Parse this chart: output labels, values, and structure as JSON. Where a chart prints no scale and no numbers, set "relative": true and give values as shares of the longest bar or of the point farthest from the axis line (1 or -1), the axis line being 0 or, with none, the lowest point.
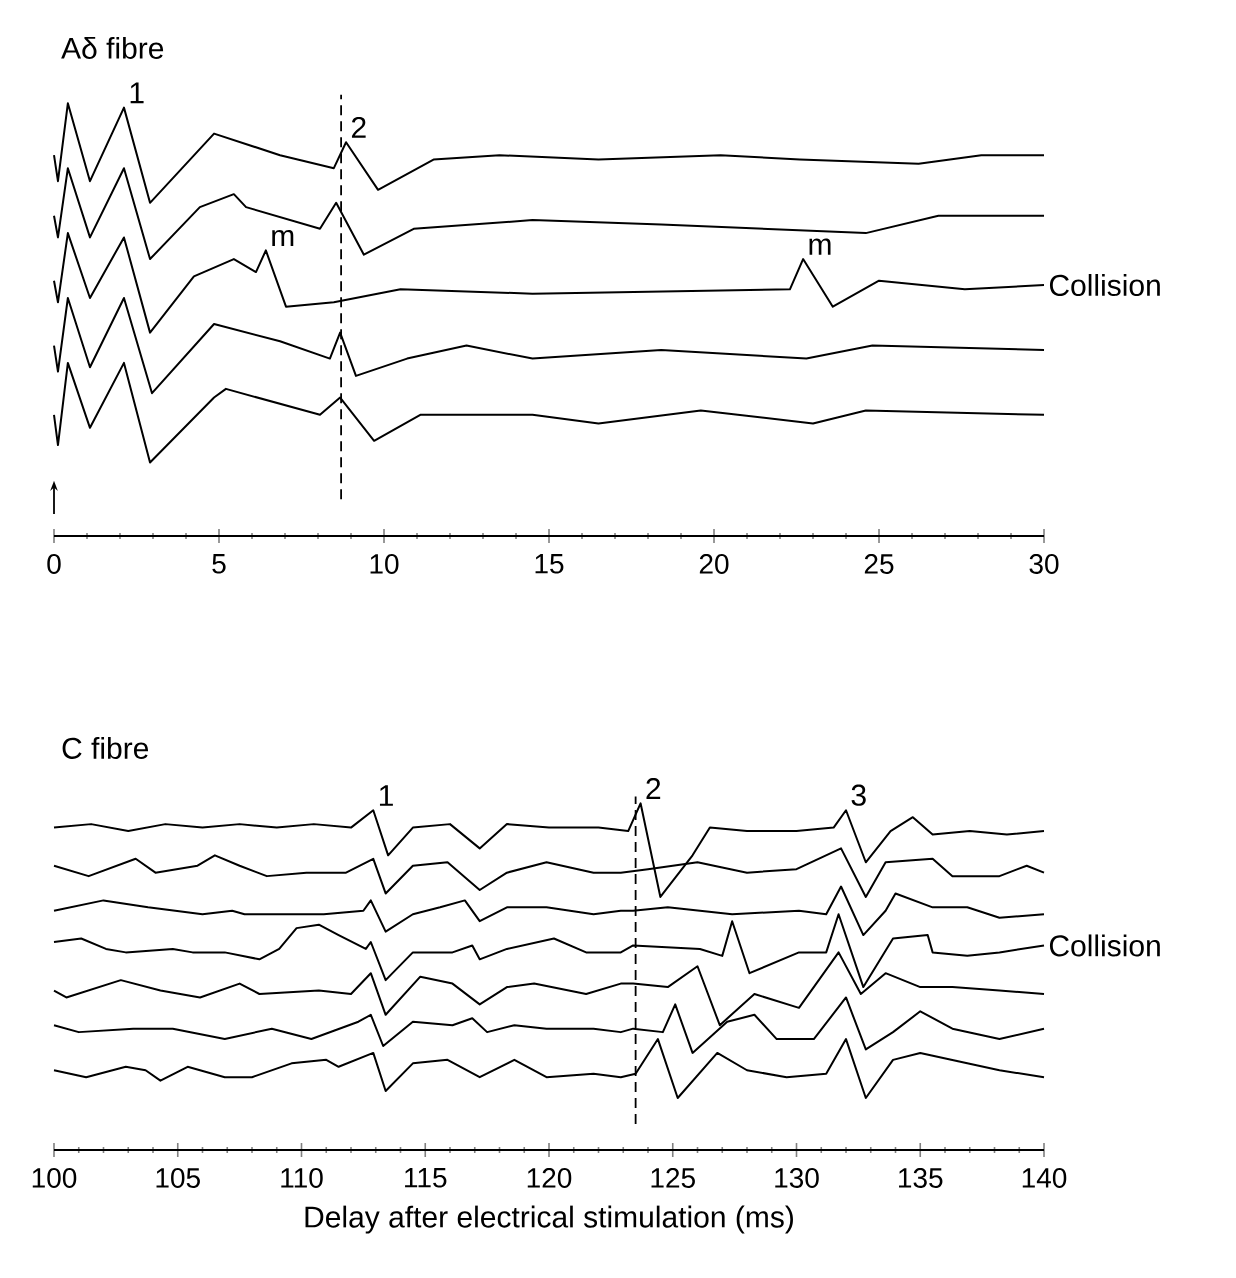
{
  "chart_data": [
    {
      "type": "line",
      "title": "Aδ fibre",
      "relative": true,
      "xlim": [
        0,
        30
      ],
      "xticks": [
        0,
        5,
        10,
        15,
        20,
        25,
        30
      ],
      "series": [
        {
          "color": "#000000",
          "x": [
            0,
            0.12,
            0.42,
            1.09,
            2.12,
            2.91,
            4.85,
            6.85,
            8.48,
            8.85,
            9.82,
            11.5,
            13.5,
            16.5,
            20.2,
            22.6,
            26.2,
            28.1,
            30
          ],
          "values": [
            0.88,
            0.82,
            1.0,
            0.82,
            0.99,
            0.77,
            0.93,
            0.88,
            0.85,
            0.91,
            0.8,
            0.87,
            0.88,
            0.87,
            0.88,
            0.87,
            0.86,
            0.88,
            0.88
          ]
        },
        {
          "color": "#000000",
          "x": [
            0,
            0.12,
            0.42,
            1.09,
            2.12,
            2.91,
            4.42,
            5.45,
            5.82,
            8.06,
            8.55,
            9.39,
            10.9,
            14.5,
            18.4,
            24.6,
            26.8,
            30
          ],
          "values": [
            0.74,
            0.69,
            0.85,
            0.69,
            0.85,
            0.64,
            0.76,
            0.79,
            0.76,
            0.71,
            0.77,
            0.65,
            0.71,
            0.73,
            0.72,
            0.7,
            0.74,
            0.74
          ]
        },
        {
          "color": "#000000",
          "x": [
            0,
            0.12,
            0.42,
            1.09,
            2.12,
            2.91,
            4.24,
            5.45,
            6.12,
            6.42,
            7.03,
            8.48,
            10.5,
            14.5,
            22.3,
            22.7,
            23.6,
            25.0,
            27.6,
            30
          ],
          "values": [
            0.59,
            0.54,
            0.7,
            0.55,
            0.69,
            0.47,
            0.6,
            0.64,
            0.61,
            0.66,
            0.53,
            0.54,
            0.57,
            0.56,
            0.57,
            0.64,
            0.53,
            0.59,
            0.57,
            0.58
          ]
        },
        {
          "color": "#000000",
          "x": [
            0,
            0.12,
            0.42,
            1.09,
            2.12,
            2.97,
            4.85,
            6.85,
            8.36,
            8.67,
            9.15,
            10.7,
            12.5,
            14.5,
            18.4,
            22.8,
            24.8,
            30
          ],
          "values": [
            0.44,
            0.38,
            0.55,
            0.39,
            0.55,
            0.33,
            0.49,
            0.45,
            0.41,
            0.47,
            0.37,
            0.41,
            0.44,
            0.41,
            0.43,
            0.41,
            0.44,
            0.43
          ]
        },
        {
          "color": "#000000",
          "x": [
            0,
            0.12,
            0.42,
            1.09,
            2.12,
            2.91,
            4.85,
            5.21,
            8.06,
            8.67,
            9.7,
            11.1,
            14.5,
            16.5,
            19.6,
            23.0,
            24.6,
            30
          ],
          "values": [
            0.28,
            0.21,
            0.4,
            0.25,
            0.4,
            0.17,
            0.32,
            0.34,
            0.28,
            0.32,
            0.22,
            0.28,
            0.28,
            0.26,
            0.29,
            0.26,
            0.29,
            0.28
          ]
        }
      ],
      "ref_lines": [
        {
          "axis": "x",
          "value": 8.7,
          "line_style": "dashed"
        }
      ],
      "annotations": [
        {
          "text": "1",
          "x": 2.12,
          "y": 0.99
        },
        {
          "text": "2",
          "x": 8.85,
          "y": 0.91
        },
        {
          "text": "m",
          "x": 6.42,
          "y": 0.66
        },
        {
          "text": "m",
          "x": 22.7,
          "y": 0.64
        },
        {
          "text": "Collision",
          "x": 30,
          "y": 0.58
        }
      ]
    },
    {
      "type": "line",
      "title": "C fibre",
      "xlabel": "Delay after electrical stimulation (ms)",
      "relative": true,
      "xlim": [
        100,
        140
      ],
      "xticks": [
        100,
        105,
        110,
        115,
        120,
        125,
        130,
        135,
        140
      ],
      "series": [
        {
          "color": "#000000",
          "x": [
            100,
            101.5,
            103,
            104.5,
            106,
            107.5,
            109,
            110.5,
            112,
            112.9,
            113.5,
            114.5,
            116,
            117.2,
            118.3,
            120,
            122,
            123.2,
            123.7,
            124.5,
            125.8,
            126.5,
            128,
            130,
            131.5,
            132,
            132.8,
            133.8,
            134.7,
            135.5,
            137,
            138.5,
            140
          ],
          "values": [
            0.93,
            0.94,
            0.92,
            0.94,
            0.93,
            0.94,
            0.93,
            0.94,
            0.93,
            0.98,
            0.85,
            0.93,
            0.94,
            0.87,
            0.94,
            0.93,
            0.93,
            0.92,
            1.0,
            0.73,
            0.85,
            0.93,
            0.92,
            0.92,
            0.93,
            0.98,
            0.83,
            0.92,
            0.96,
            0.91,
            0.92,
            0.91,
            0.92
          ]
        },
        {
          "color": "#000000",
          "x": [
            100,
            101.4,
            103.3,
            104.1,
            105.8,
            106.5,
            107.5,
            108.6,
            110.2,
            111.8,
            112.9,
            113.4,
            114.5,
            115.9,
            117.2,
            118.3,
            119.9,
            121.8,
            122.9,
            124,
            126,
            128,
            130,
            131.8,
            132.8,
            133.6,
            135.5,
            136.3,
            138.2,
            139.3,
            140
          ],
          "values": [
            0.82,
            0.79,
            0.84,
            0.8,
            0.82,
            0.85,
            0.82,
            0.79,
            0.8,
            0.8,
            0.84,
            0.74,
            0.82,
            0.83,
            0.75,
            0.8,
            0.83,
            0.8,
            0.8,
            0.81,
            0.83,
            0.8,
            0.81,
            0.87,
            0.73,
            0.83,
            0.84,
            0.79,
            0.79,
            0.82,
            0.8
          ]
        },
        {
          "color": "#000000",
          "x": [
            100,
            102,
            103.8,
            106,
            107.2,
            107.7,
            109.3,
            110.9,
            112.5,
            112.8,
            113.4,
            114.5,
            115.6,
            116.6,
            117.2,
            118.3,
            119.9,
            121.8,
            122.9,
            123.4,
            124.8,
            127.4,
            130.1,
            131.2,
            131.8,
            132.7,
            133.6,
            134,
            135.5,
            136.9,
            138.2,
            140
          ],
          "values": [
            0.69,
            0.72,
            0.7,
            0.68,
            0.69,
            0.68,
            0.68,
            0.68,
            0.69,
            0.72,
            0.63,
            0.68,
            0.7,
            0.72,
            0.66,
            0.7,
            0.7,
            0.68,
            0.69,
            0.69,
            0.7,
            0.68,
            0.69,
            0.68,
            0.76,
            0.62,
            0.69,
            0.74,
            0.7,
            0.7,
            0.67,
            0.68
          ]
        },
        {
          "color": "#000000",
          "x": [
            100,
            101.1,
            102.1,
            102.9,
            104.8,
            105.6,
            106.9,
            108.3,
            109.1,
            109.8,
            110.7,
            111.5,
            112.6,
            112.8,
            113.4,
            114.5,
            116.1,
            116.9,
            117.2,
            118.3,
            120.2,
            121.5,
            122.9,
            123.4,
            126.1,
            127,
            127.4,
            128.1,
            130.1,
            131.2,
            131.7,
            132.7,
            133.9,
            135.3,
            135.5,
            136.9,
            138.2,
            140
          ],
          "values": [
            0.6,
            0.61,
            0.58,
            0.57,
            0.58,
            0.57,
            0.57,
            0.55,
            0.58,
            0.64,
            0.65,
            0.62,
            0.58,
            0.6,
            0.49,
            0.57,
            0.57,
            0.59,
            0.55,
            0.58,
            0.61,
            0.57,
            0.57,
            0.59,
            0.58,
            0.56,
            0.66,
            0.51,
            0.57,
            0.57,
            0.68,
            0.47,
            0.61,
            0.62,
            0.57,
            0.56,
            0.57,
            0.59
          ]
        },
        {
          "color": "#000000",
          "x": [
            100,
            100.5,
            102.7,
            104.3,
            105.9,
            107.5,
            108.3,
            110.7,
            112,
            112.8,
            113.4,
            114.8,
            116.1,
            117.2,
            118.3,
            119.4,
            121.5,
            122.9,
            123.4,
            124.8,
            126,
            126.9,
            128.3,
            130.1,
            131.7,
            132.6,
            133.6,
            135,
            136.3,
            138.2,
            140
          ],
          "values": [
            0.46,
            0.44,
            0.49,
            0.46,
            0.44,
            0.48,
            0.45,
            0.46,
            0.45,
            0.51,
            0.39,
            0.5,
            0.48,
            0.42,
            0.47,
            0.48,
            0.45,
            0.48,
            0.48,
            0.47,
            0.53,
            0.36,
            0.45,
            0.41,
            0.57,
            0.45,
            0.51,
            0.47,
            0.47,
            0.46,
            0.45
          ]
        },
        {
          "color": "#000000",
          "x": [
            100,
            101,
            103.2,
            104.8,
            106.9,
            108.8,
            110.4,
            112.3,
            112.8,
            113.3,
            114.5,
            116.1,
            116.9,
            117.5,
            118.6,
            119.9,
            121.8,
            122.9,
            123.4,
            124.6,
            125.1,
            125.8,
            127.2,
            128.3,
            129.2,
            130.7,
            132,
            132.8,
            133.9,
            135,
            136.3,
            138.2,
            140
          ],
          "values": [
            0.36,
            0.34,
            0.35,
            0.35,
            0.32,
            0.35,
            0.32,
            0.37,
            0.39,
            0.3,
            0.37,
            0.36,
            0.38,
            0.34,
            0.36,
            0.35,
            0.35,
            0.34,
            0.35,
            0.34,
            0.42,
            0.28,
            0.37,
            0.39,
            0.32,
            0.32,
            0.44,
            0.29,
            0.34,
            0.4,
            0.35,
            0.32,
            0.35
          ]
        },
        {
          "color": "#000000",
          "x": [
            100,
            101.3,
            102.9,
            103.7,
            104.3,
            105.4,
            106.9,
            108,
            109.6,
            111,
            111.5,
            112.9,
            113.4,
            114.5,
            115.9,
            117.2,
            118.6,
            119.9,
            121.8,
            122.9,
            123.5,
            124.4,
            125.2,
            126.8,
            128,
            129.6,
            131.2,
            132,
            132.8,
            133.9,
            135,
            136.9,
            138.2,
            140
          ],
          "values": [
            0.23,
            0.21,
            0.24,
            0.23,
            0.2,
            0.24,
            0.21,
            0.21,
            0.25,
            0.26,
            0.24,
            0.28,
            0.17,
            0.25,
            0.26,
            0.21,
            0.26,
            0.21,
            0.22,
            0.21,
            0.22,
            0.32,
            0.15,
            0.28,
            0.23,
            0.21,
            0.22,
            0.32,
            0.15,
            0.26,
            0.28,
            0.25,
            0.23,
            0.21
          ]
        }
      ],
      "ref_lines": [
        {
          "axis": "x",
          "value": 123.5,
          "line_style": "dashed"
        }
      ],
      "annotations": [
        {
          "text": "1",
          "x": 112.9,
          "y": 0.98
        },
        {
          "text": "2",
          "x": 123.7,
          "y": 1.0
        },
        {
          "text": "3",
          "x": 132,
          "y": 0.98
        },
        {
          "text": "Collision",
          "x": 140,
          "y": 0.59
        }
      ]
    }
  ]
}
